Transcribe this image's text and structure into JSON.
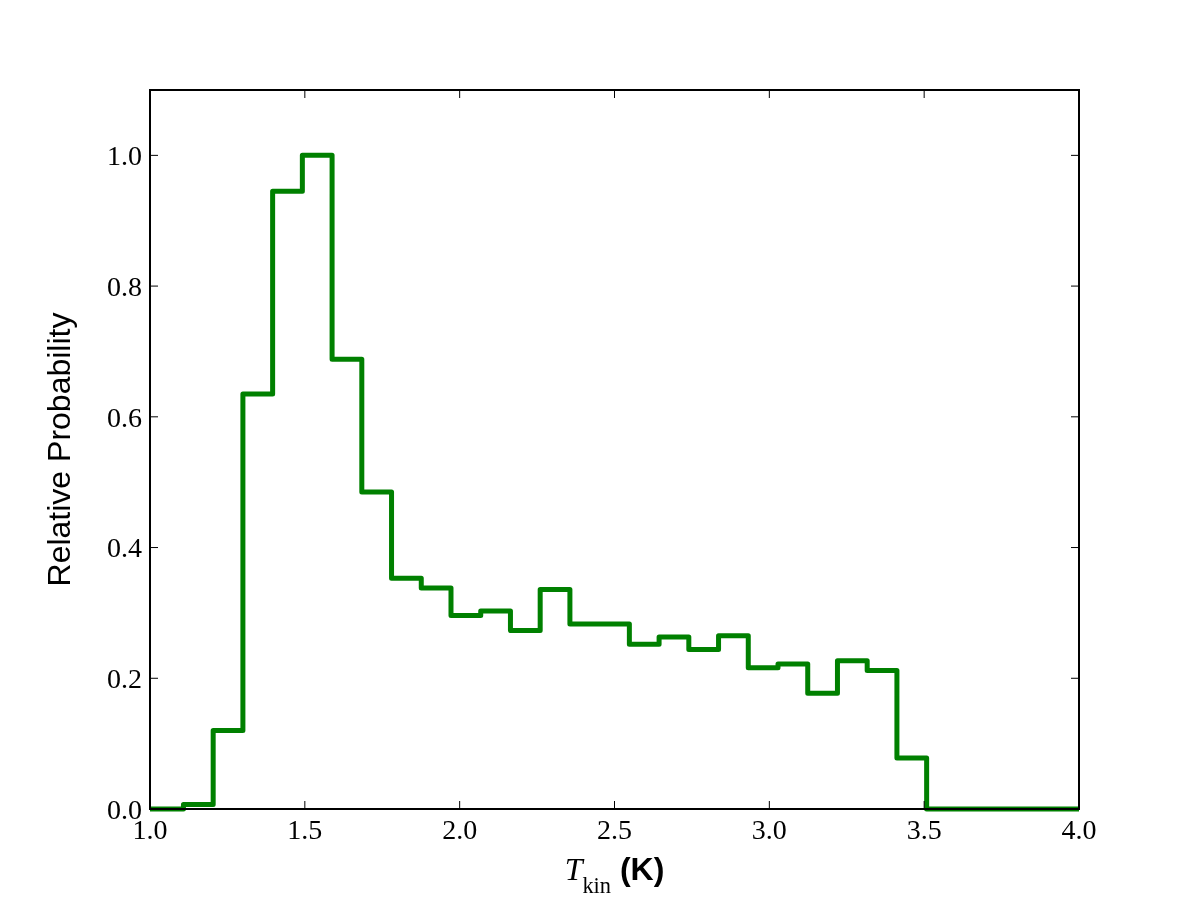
{
  "chart_data": {
    "type": "histogram",
    "xlabel": "T$_{kin}$ (K)",
    "ylabel": "Relative Probability",
    "color": "#008000",
    "bins": [
      1.0,
      1.108,
      1.204,
      1.3,
      1.396,
      1.492,
      1.588,
      1.684,
      1.78,
      1.876,
      1.972,
      2.068,
      2.164,
      2.26,
      2.356,
      2.452,
      2.548,
      2.644,
      2.74,
      2.836,
      2.932,
      3.028,
      3.124,
      3.22,
      3.316,
      3.412,
      3.508,
      4.0
    ],
    "values": [
      0,
      0.007,
      0.12,
      0.635,
      0.945,
      1.0,
      0.688,
      0.485,
      0.353,
      0.338,
      0.296,
      0.303,
      0.273,
      0.336,
      0.283,
      0.283,
      0.252,
      0.263,
      0.244,
      0.265,
      0.216,
      0.222,
      0.177,
      0.227,
      0.212,
      0.078,
      0
    ],
    "xlim": [
      1.0,
      4.0
    ],
    "xticks": [
      {
        "value": 1.0,
        "label": "1.0"
      },
      {
        "value": 1.5,
        "label": "1.5"
      },
      {
        "value": 2.0,
        "label": "2.0"
      },
      {
        "value": 2.5,
        "label": "2.5"
      },
      {
        "value": 3.0,
        "label": "3.0"
      },
      {
        "value": 3.5,
        "label": "3.5"
      },
      {
        "value": 4.0,
        "label": "4.0"
      }
    ],
    "ylim": [
      0,
      1.1
    ],
    "yticks": [
      {
        "value": 0,
        "label": "0.0"
      },
      {
        "value": 0.2,
        "label": "0.2"
      },
      {
        "value": 0.4,
        "label": "0.4"
      },
      {
        "value": 0.6,
        "label": "0.6"
      },
      {
        "value": 0.8,
        "label": "0.8"
      },
      {
        "value": 1.0,
        "label": "1.0"
      }
    ],
    "grid": false
  }
}
